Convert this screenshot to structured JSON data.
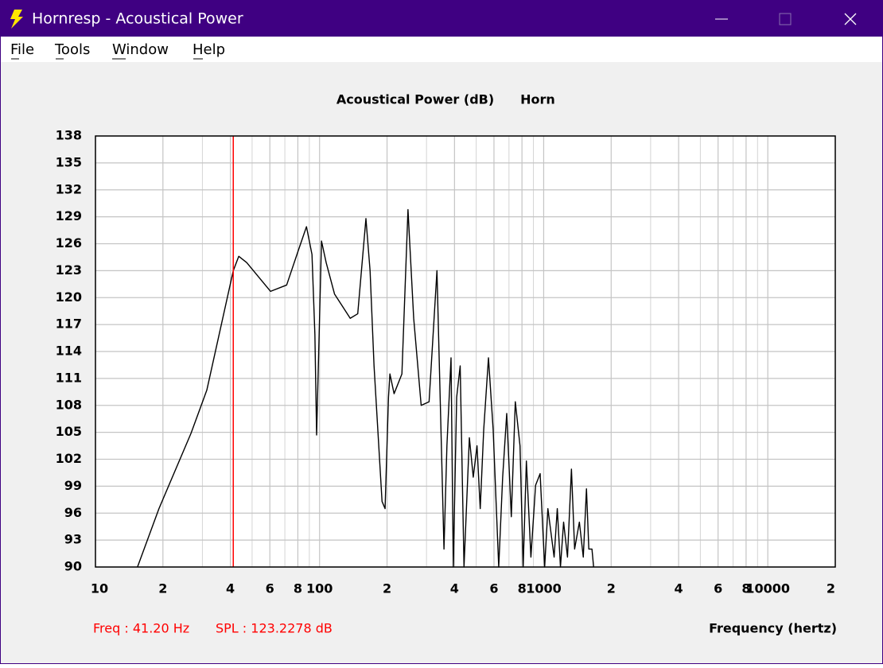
{
  "window": {
    "title": "Hornresp - Acoustical Power",
    "menu": [
      "File",
      "Tools",
      "Window",
      "Help"
    ]
  },
  "chart_data": {
    "type": "line",
    "title": "Acoustical Power (dB)",
    "subtitle": "Horn",
    "x_label": "Frequency (hertz)",
    "log_x": true,
    "grid": true,
    "color": "#000000",
    "x": [
      15.4,
      19.2,
      26.7,
      31.4,
      41.2,
      43.6,
      47.3,
      60.4,
      71.3,
      80.5,
      87.4,
      92.5,
      95.3,
      97.0,
      102,
      107,
      116.6,
      137,
      148,
      161,
      168,
      175,
      190,
      196,
      203,
      206,
      215,
      233,
      248,
      263,
      284,
      308,
      334,
      359,
      370,
      386,
      395,
      409,
      424,
      441,
      466,
      485,
      504,
      521,
      540,
      567,
      595,
      630,
      656,
      684,
      717,
      747,
      784,
      810,
      837,
      877,
      920,
      964,
      1010,
      1044,
      1078,
      1113,
      1150,
      1188,
      1227,
      1277,
      1330,
      1374,
      1443,
      1502,
      1552,
      1590,
      1642,
      1670
    ],
    "values": [
      90,
      96.5,
      104.9,
      109.7,
      123.0,
      124.6,
      123.9,
      120.7,
      121.4,
      125.3,
      127.9,
      124.8,
      115.9,
      104.7,
      126.3,
      123.9,
      120.4,
      117.7,
      118.2,
      128.8,
      123.0,
      112.4,
      97.3,
      96.5,
      108.9,
      111.5,
      109.3,
      111.5,
      129.8,
      117.7,
      108.0,
      108.4,
      123.0,
      92.0,
      103.5,
      113.3,
      90,
      108.9,
      112.4,
      90,
      104.4,
      100.0,
      103.5,
      96.5,
      105.3,
      113.3,
      105.3,
      90,
      100,
      107.1,
      95.6,
      108.4,
      103.5,
      90,
      101.8,
      91.1,
      99.1,
      100.4,
      90,
      96.5,
      93.8,
      91.1,
      96.5,
      90,
      95.0,
      91.1,
      100.9,
      92.0,
      95.0,
      91.1,
      98.7,
      92.0,
      92.0,
      90
    ],
    "xlim": [
      10,
      20000
    ],
    "ylim": [
      90,
      138
    ],
    "xticks": [
      10,
      {
        "value": 20,
        "label": "2"
      },
      {
        "value": 40,
        "label": "4"
      },
      {
        "value": 60,
        "label": "6"
      },
      {
        "value": 80,
        "label": "8"
      },
      100,
      {
        "value": 200,
        "label": "2"
      },
      {
        "value": 400,
        "label": "4"
      },
      {
        "value": 600,
        "label": "6"
      },
      {
        "value": 800,
        "label": "8"
      },
      1000,
      {
        "value": 2000,
        "label": "2"
      },
      {
        "value": 4000,
        "label": "4"
      },
      {
        "value": 6000,
        "label": "6"
      },
      {
        "value": 8000,
        "label": "8"
      },
      10000,
      {
        "value": 20000,
        "label": "2"
      }
    ],
    "yticks": [
      90,
      93,
      96,
      99,
      102,
      105,
      108,
      111,
      114,
      117,
      120,
      123,
      126,
      129,
      132,
      135,
      138
    ],
    "cursor_freq": 41.2,
    "cursor_color": "#ff0000",
    "cursor_label": "Freq : 41.20 Hz",
    "spl_label": "SPL : 123.2278 dB"
  }
}
